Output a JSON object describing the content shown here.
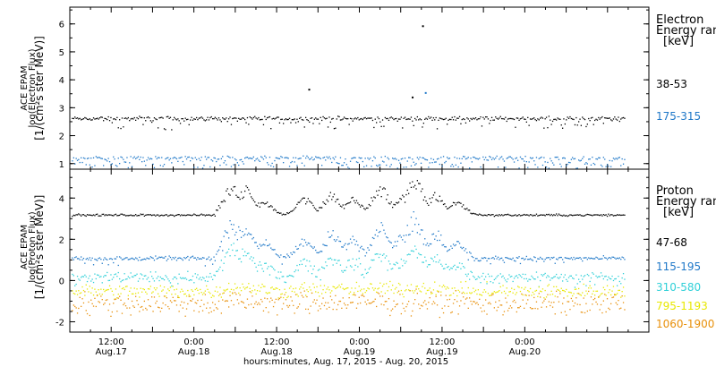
{
  "chart_data": [
    {
      "type": "scatter",
      "ylabel_lines": [
        "ACE EPAM",
        "log(Electron Flux)",
        "[1/(cm²s ster MeV)]"
      ],
      "ylim": [
        0.8,
        6.6
      ],
      "yticks": [
        1,
        2,
        3,
        4,
        5,
        6
      ],
      "legend_title_lines": [
        "Electron",
        "Energy ran",
        "[keV]"
      ],
      "series": [
        {
          "name": "38-53",
          "color": "#000000",
          "base": 2.63,
          "noise": 0.06,
          "dips": 0.03
        },
        {
          "name": "175-315",
          "color": "#1f78c8",
          "base": 1.22,
          "noise": 0.05,
          "dips": 0.08
        }
      ],
      "outliers": [
        {
          "t": 34.6,
          "y": 3.68,
          "color": "#000000"
        },
        {
          "t": 51.1,
          "y": 5.95,
          "color": "#000000"
        },
        {
          "t": 49.6,
          "y": 3.4,
          "color": "#000000"
        },
        {
          "t": 51.5,
          "y": 3.56,
          "color": "#1f78c8"
        }
      ]
    },
    {
      "type": "scatter",
      "ylabel_lines": [
        "ACE EPAM",
        "log(Proton Flux)",
        "[1/(cm²s ster MeV)]"
      ],
      "ylim": [
        -2.5,
        5.4
      ],
      "yticks": [
        -2,
        0,
        2,
        4
      ],
      "legend_title_lines": [
        "Proton",
        "Energy ran",
        "[keV]"
      ],
      "series": [
        {
          "name": "47-68",
          "color": "#000000",
          "base": 3.2,
          "noise": 0.04,
          "dips": 0.0,
          "storm_amp": 1.3
        },
        {
          "name": "115-195",
          "color": "#1f78c8",
          "base": 1.1,
          "noise": 0.08,
          "dips": 0.02,
          "storm_amp": 1.6
        },
        {
          "name": "310-580",
          "color": "#30d0d8",
          "base": 0.2,
          "noise": 0.18,
          "dips": 0.04,
          "storm_amp": 1.3
        },
        {
          "name": "795-1193",
          "color": "#e8e800",
          "base": -0.5,
          "noise": 0.28,
          "dips": 0.0,
          "storm_amp": 0.2
        },
        {
          "name": "1060-1900",
          "color": "#e8900a",
          "base": -1.1,
          "noise": 0.45,
          "dips": 0.0,
          "storm_amp": 0.1
        }
      ],
      "storm": {
        "start_hours": 21.0,
        "end_hours": 61.0
      }
    }
  ],
  "x_axis": {
    "range_hours": [
      0,
      84
    ],
    "start_ref": "Aug. 17, 2015 06:00",
    "data_end_hours": 80.5,
    "ticks": [
      {
        "t": 6,
        "line1": "12:00",
        "line2": "Aug.17"
      },
      {
        "t": 18,
        "line1": "0:00",
        "line2": "Aug.18"
      },
      {
        "t": 30,
        "line1": "12:00",
        "line2": "Aug.18"
      },
      {
        "t": 42,
        "line1": "0:00",
        "line2": "Aug.19"
      },
      {
        "t": 54,
        "line1": "12:00",
        "line2": "Aug.19"
      },
      {
        "t": 66,
        "line1": "0:00",
        "line2": "Aug.20"
      }
    ],
    "xlabel": "hours:minutes, Aug. 17, 2015 - Aug. 20, 2015"
  }
}
